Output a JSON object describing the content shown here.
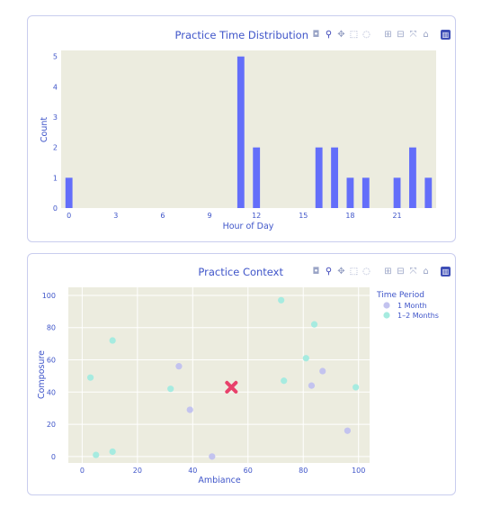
{
  "modebar_icons": [
    "camera-icon",
    "zoom-icon",
    "pan-icon",
    "box-select-icon",
    "lasso-icon",
    "zoom-in-icon",
    "zoom-out-icon",
    "autoscale-icon",
    "home-icon",
    "plotly-logo-icon"
  ],
  "colors": {
    "bar": "#636efa",
    "plot_bg": "#ececdf",
    "text": "#3f55c9",
    "month1": "#c3c3ef",
    "months12": "#a6ebe0",
    "marker": "#e8416b"
  },
  "chart_data": [
    {
      "type": "bar",
      "title": "Practice Time Distribution",
      "xlabel": "Hour of Day",
      "ylabel": "Count",
      "xlim": [
        -0.5,
        23.5
      ],
      "ylim": [
        0,
        5.2
      ],
      "xticks": [
        0,
        3,
        6,
        9,
        12,
        15,
        18,
        21
      ],
      "yticks": [
        0,
        1,
        2,
        3,
        4,
        5
      ],
      "grid": false,
      "x": [
        0,
        11,
        12,
        16,
        17,
        18,
        19,
        21,
        22,
        23
      ],
      "values": [
        1,
        5,
        2,
        2,
        2,
        1,
        1,
        1,
        2,
        1
      ]
    },
    {
      "type": "scatter",
      "title": "Practice Context",
      "xlabel": "Ambiance",
      "ylabel": "Composure",
      "xlim": [
        -5,
        104
      ],
      "ylim": [
        -4,
        105
      ],
      "xticks": [
        0,
        20,
        40,
        60,
        80,
        100
      ],
      "yticks": [
        0,
        20,
        40,
        60,
        80,
        100
      ],
      "grid": true,
      "legend": {
        "title": "Time Period",
        "placement": "top-right"
      },
      "series": [
        {
          "name": "1 Month",
          "color": "#c3c3ef",
          "points": [
            [
              35,
              56
            ],
            [
              39,
              29
            ],
            [
              47,
              0
            ],
            [
              83,
              44
            ],
            [
              87,
              53
            ],
            [
              96,
              16
            ]
          ]
        },
        {
          "name": "1–2 Months",
          "color": "#a6ebe0",
          "points": [
            [
              3,
              49
            ],
            [
              5,
              1
            ],
            [
              11,
              72
            ],
            [
              11,
              3
            ],
            [
              32,
              42
            ],
            [
              72,
              97
            ],
            [
              73,
              47
            ],
            [
              81,
              61
            ],
            [
              84,
              82
            ],
            [
              99,
              43
            ]
          ]
        }
      ],
      "highlight_point": {
        "x": 54,
        "y": 43,
        "shape": "x",
        "color": "#e8416b"
      }
    }
  ]
}
